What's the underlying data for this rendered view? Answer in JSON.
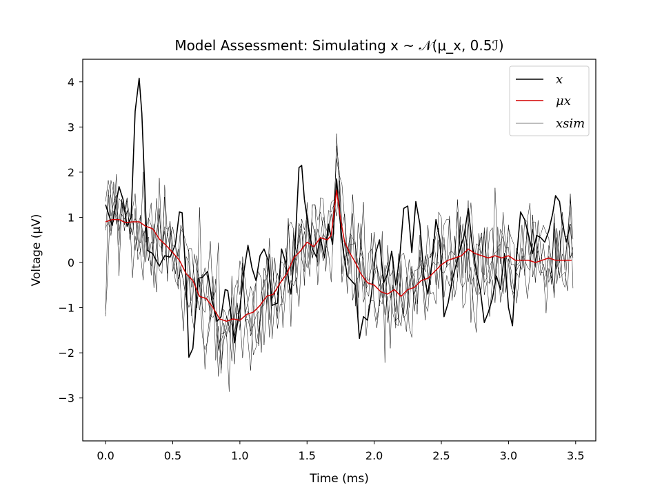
{
  "chart_data": {
    "type": "line",
    "title": "Model Assessment: Simulating x ~ 𝒩(μ_x, 0.5ℐ)",
    "xlabel": "Time (ms)",
    "ylabel": "Voltage (μV)",
    "xlim": [
      -0.17,
      3.65
    ],
    "ylim": [
      -3.95,
      4.5
    ],
    "xticks": [
      0.0,
      0.5,
      1.0,
      1.5,
      2.0,
      2.5,
      3.0,
      3.5
    ],
    "xtick_labels": [
      "0.0",
      "0.5",
      "1.0",
      "1.5",
      "2.0",
      "2.5",
      "3.0",
      "3.5"
    ],
    "yticks": [
      -3,
      -2,
      -1,
      0,
      1,
      2,
      3,
      4
    ],
    "ytick_labels": [
      "−3",
      "−2",
      "−1",
      "0",
      "1",
      "2",
      "3",
      "4"
    ],
    "legend_position": "top-right",
    "grid": false,
    "series": [
      {
        "name": "x",
        "color": "#000000",
        "points": [
          [
            0.0,
            1.28
          ],
          [
            0.05,
            0.82
          ],
          [
            0.1,
            1.68
          ],
          [
            0.13,
            1.4
          ],
          [
            0.16,
            0.8
          ],
          [
            0.19,
            1.0
          ],
          [
            0.22,
            3.35
          ],
          [
            0.25,
            4.08
          ],
          [
            0.27,
            3.3
          ],
          [
            0.31,
            0.27
          ],
          [
            0.35,
            0.2
          ],
          [
            0.4,
            -0.08
          ],
          [
            0.44,
            0.15
          ],
          [
            0.48,
            0.12
          ],
          [
            0.52,
            0.4
          ],
          [
            0.55,
            1.12
          ],
          [
            0.57,
            1.1
          ],
          [
            0.6,
            -0.4
          ],
          [
            0.62,
            -2.1
          ],
          [
            0.65,
            -1.9
          ],
          [
            0.69,
            -0.35
          ],
          [
            0.72,
            -0.33
          ],
          [
            0.76,
            -0.2
          ],
          [
            0.79,
            -0.8
          ],
          [
            0.83,
            -1.3
          ],
          [
            0.86,
            -1.2
          ],
          [
            0.89,
            -0.6
          ],
          [
            0.91,
            -0.62
          ],
          [
            0.94,
            -1.28
          ],
          [
            0.96,
            -1.78
          ],
          [
            1.0,
            -1.0
          ],
          [
            1.03,
            -0.2
          ],
          [
            1.06,
            0.38
          ],
          [
            1.09,
            -0.12
          ],
          [
            1.12,
            -0.4
          ],
          [
            1.15,
            0.15
          ],
          [
            1.18,
            0.3
          ],
          [
            1.21,
            0.05
          ],
          [
            1.24,
            -0.95
          ],
          [
            1.28,
            -0.9
          ],
          [
            1.31,
            0.3
          ],
          [
            1.34,
            0.0
          ],
          [
            1.38,
            -0.7
          ],
          [
            1.41,
            0.3
          ],
          [
            1.44,
            2.1
          ],
          [
            1.46,
            2.15
          ],
          [
            1.48,
            1.4
          ],
          [
            1.51,
            0.8
          ],
          [
            1.54,
            0.3
          ],
          [
            1.57,
            0.12
          ],
          [
            1.6,
            0.55
          ],
          [
            1.63,
            0.1
          ],
          [
            1.66,
            0.85
          ],
          [
            1.69,
            0.4
          ],
          [
            1.72,
            1.85
          ],
          [
            1.74,
            1.1
          ],
          [
            1.77,
            0.25
          ],
          [
            1.8,
            -0.3
          ],
          [
            1.83,
            -0.4
          ],
          [
            1.86,
            -0.5
          ],
          [
            1.89,
            -1.68
          ],
          [
            1.92,
            -1.2
          ],
          [
            1.95,
            -1.28
          ],
          [
            1.98,
            -0.7
          ],
          [
            2.01,
            0.2
          ],
          [
            2.04,
            0.5
          ],
          [
            2.07,
            -0.45
          ],
          [
            2.1,
            -0.25
          ],
          [
            2.13,
            0.25
          ],
          [
            2.16,
            -0.5
          ],
          [
            2.19,
            0.1
          ],
          [
            2.22,
            1.2
          ],
          [
            2.25,
            1.25
          ],
          [
            2.28,
            0.22
          ],
          [
            2.31,
            1.35
          ],
          [
            2.34,
            0.85
          ],
          [
            2.37,
            -0.3
          ],
          [
            2.4,
            -0.7
          ],
          [
            2.43,
            0.0
          ],
          [
            2.46,
            0.95
          ],
          [
            2.49,
            0.5
          ],
          [
            2.52,
            -1.2
          ],
          [
            2.55,
            -0.9
          ],
          [
            2.58,
            -0.4
          ],
          [
            2.61,
            -0.05
          ],
          [
            2.64,
            0.3
          ],
          [
            2.67,
            0.6
          ],
          [
            2.7,
            1.2
          ],
          [
            2.73,
            0.4
          ],
          [
            2.76,
            -0.2
          ],
          [
            2.79,
            -0.6
          ],
          [
            2.82,
            -1.33
          ],
          [
            2.85,
            -1.1
          ],
          [
            2.88,
            -0.8
          ],
          [
            2.91,
            -0.3
          ],
          [
            2.94,
            -0.6
          ],
          [
            2.97,
            0.2
          ],
          [
            3.0,
            -1.0
          ],
          [
            3.03,
            -1.4
          ],
          [
            3.06,
            0.1
          ],
          [
            3.09,
            1.12
          ],
          [
            3.12,
            0.95
          ],
          [
            3.15,
            0.6
          ],
          [
            3.18,
            0.2
          ],
          [
            3.21,
            0.6
          ],
          [
            3.24,
            0.55
          ],
          [
            3.27,
            0.45
          ],
          [
            3.3,
            0.7
          ],
          [
            3.33,
            1.1
          ],
          [
            3.35,
            1.48
          ],
          [
            3.38,
            1.35
          ],
          [
            3.4,
            0.9
          ],
          [
            3.43,
            0.45
          ],
          [
            3.46,
            0.85
          ]
        ]
      },
      {
        "name": "μx",
        "color": "#d40000",
        "points": [
          [
            0.0,
            0.9
          ],
          [
            0.05,
            0.95
          ],
          [
            0.1,
            0.95
          ],
          [
            0.15,
            0.88
          ],
          [
            0.2,
            0.9
          ],
          [
            0.25,
            0.9
          ],
          [
            0.3,
            0.8
          ],
          [
            0.35,
            0.75
          ],
          [
            0.4,
            0.52
          ],
          [
            0.45,
            0.38
          ],
          [
            0.5,
            0.22
          ],
          [
            0.55,
            0.05
          ],
          [
            0.6,
            -0.25
          ],
          [
            0.65,
            -0.4
          ],
          [
            0.7,
            -0.75
          ],
          [
            0.75,
            -0.8
          ],
          [
            0.8,
            -1.0
          ],
          [
            0.85,
            -1.25
          ],
          [
            0.9,
            -1.3
          ],
          [
            0.95,
            -1.25
          ],
          [
            1.0,
            -1.28
          ],
          [
            1.05,
            -1.15
          ],
          [
            1.1,
            -1.1
          ],
          [
            1.15,
            -0.95
          ],
          [
            1.2,
            -0.75
          ],
          [
            1.25,
            -0.7
          ],
          [
            1.3,
            -0.45
          ],
          [
            1.35,
            -0.25
          ],
          [
            1.4,
            0.1
          ],
          [
            1.45,
            0.25
          ],
          [
            1.5,
            0.45
          ],
          [
            1.55,
            0.35
          ],
          [
            1.6,
            0.55
          ],
          [
            1.65,
            0.5
          ],
          [
            1.68,
            0.6
          ],
          [
            1.72,
            1.6
          ],
          [
            1.75,
            0.95
          ],
          [
            1.78,
            0.45
          ],
          [
            1.82,
            0.2
          ],
          [
            1.86,
            0.0
          ],
          [
            1.9,
            -0.25
          ],
          [
            1.95,
            -0.45
          ],
          [
            2.0,
            -0.5
          ],
          [
            2.05,
            -0.65
          ],
          [
            2.1,
            -0.7
          ],
          [
            2.15,
            -0.6
          ],
          [
            2.2,
            -0.75
          ],
          [
            2.25,
            -0.6
          ],
          [
            2.3,
            -0.55
          ],
          [
            2.35,
            -0.4
          ],
          [
            2.4,
            -0.35
          ],
          [
            2.45,
            -0.2
          ],
          [
            2.5,
            -0.05
          ],
          [
            2.55,
            0.05
          ],
          [
            2.6,
            0.1
          ],
          [
            2.65,
            0.15
          ],
          [
            2.7,
            0.3
          ],
          [
            2.75,
            0.2
          ],
          [
            2.8,
            0.15
          ],
          [
            2.85,
            0.1
          ],
          [
            2.9,
            0.15
          ],
          [
            2.95,
            0.1
          ],
          [
            3.0,
            0.15
          ],
          [
            3.05,
            0.05
          ],
          [
            3.1,
            0.05
          ],
          [
            3.15,
            0.05
          ],
          [
            3.2,
            0.0
          ],
          [
            3.25,
            0.05
          ],
          [
            3.3,
            0.1
          ],
          [
            3.35,
            0.05
          ],
          [
            3.4,
            0.05
          ],
          [
            3.47,
            0.05
          ]
        ]
      },
      {
        "name": "xsim",
        "color": "#000000",
        "count": 5,
        "noise_sd": 0.707,
        "display": "thin simulated traces around μx"
      }
    ]
  }
}
